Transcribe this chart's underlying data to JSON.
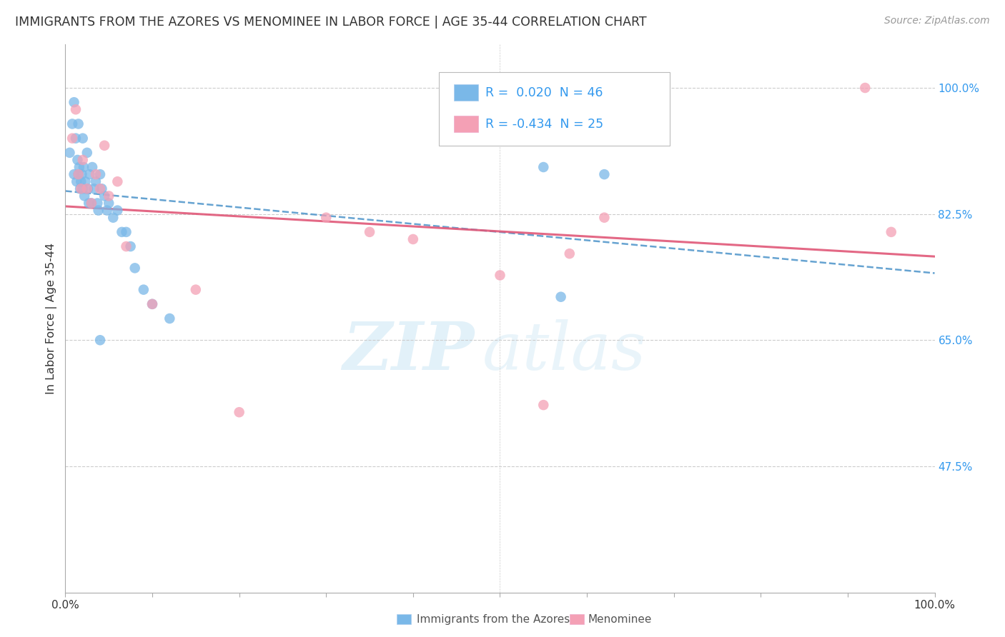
{
  "title": "IMMIGRANTS FROM THE AZORES VS MENOMINEE IN LABOR FORCE | AGE 35-44 CORRELATION CHART",
  "source": "Source: ZipAtlas.com",
  "ylabel": "In Labor Force | Age 35-44",
  "xlim": [
    0.0,
    1.0
  ],
  "ylim": [
    0.3,
    1.06
  ],
  "yticks": [
    0.475,
    0.65,
    0.825,
    1.0
  ],
  "ytick_labels": [
    "47.5%",
    "65.0%",
    "82.5%",
    "100.0%"
  ],
  "xtick_positions": [
    0.0,
    0.1,
    0.2,
    0.3,
    0.4,
    0.5,
    0.6,
    0.7,
    0.8,
    0.9,
    1.0
  ],
  "xtick_labels": [
    "0.0%",
    "",
    "",
    "",
    "",
    "",
    "",
    "",
    "",
    "",
    "100.0%"
  ],
  "series1_name": "Immigrants from the Azores",
  "series1_color": "#7ab8e8",
  "series1_line_color": "#5599cc",
  "series1_R": 0.02,
  "series1_N": 46,
  "series2_name": "Menominee",
  "series2_color": "#f4a0b5",
  "series2_line_color": "#e05878",
  "series2_R": -0.434,
  "series2_N": 25,
  "watermark_zip": "ZIP",
  "watermark_atlas": "atlas",
  "background_color": "#ffffff",
  "grid_color": "#cccccc",
  "blue_scatter_x": [
    0.005,
    0.008,
    0.01,
    0.01,
    0.012,
    0.013,
    0.014,
    0.015,
    0.015,
    0.016,
    0.017,
    0.018,
    0.019,
    0.02,
    0.02,
    0.021,
    0.022,
    0.023,
    0.025,
    0.026,
    0.027,
    0.028,
    0.03,
    0.031,
    0.033,
    0.035,
    0.037,
    0.038,
    0.04,
    0.042,
    0.045,
    0.048,
    0.05,
    0.055,
    0.06,
    0.065,
    0.07,
    0.075,
    0.08,
    0.09,
    0.1,
    0.12,
    0.55,
    0.57,
    0.62,
    0.04
  ],
  "blue_scatter_y": [
    0.91,
    0.95,
    0.98,
    0.88,
    0.93,
    0.87,
    0.9,
    0.88,
    0.95,
    0.89,
    0.86,
    0.87,
    0.88,
    0.93,
    0.86,
    0.89,
    0.85,
    0.87,
    0.91,
    0.86,
    0.84,
    0.88,
    0.84,
    0.89,
    0.86,
    0.87,
    0.84,
    0.83,
    0.88,
    0.86,
    0.85,
    0.83,
    0.84,
    0.82,
    0.83,
    0.8,
    0.8,
    0.78,
    0.75,
    0.72,
    0.7,
    0.68,
    0.89,
    0.71,
    0.88,
    0.65
  ],
  "pink_scatter_x": [
    0.008,
    0.012,
    0.015,
    0.018,
    0.02,
    0.025,
    0.03,
    0.035,
    0.04,
    0.045,
    0.05,
    0.06,
    0.07,
    0.1,
    0.15,
    0.2,
    0.3,
    0.35,
    0.4,
    0.5,
    0.55,
    0.58,
    0.62,
    0.92,
    0.95
  ],
  "pink_scatter_y": [
    0.93,
    0.97,
    0.88,
    0.86,
    0.9,
    0.86,
    0.84,
    0.88,
    0.86,
    0.92,
    0.85,
    0.87,
    0.78,
    0.7,
    0.72,
    0.55,
    0.82,
    0.8,
    0.79,
    0.74,
    0.56,
    0.77,
    0.82,
    1.0,
    0.8
  ],
  "legend_R1_text": "R =  0.020  N = 46",
  "legend_R2_text": "R = -0.434  N = 25"
}
